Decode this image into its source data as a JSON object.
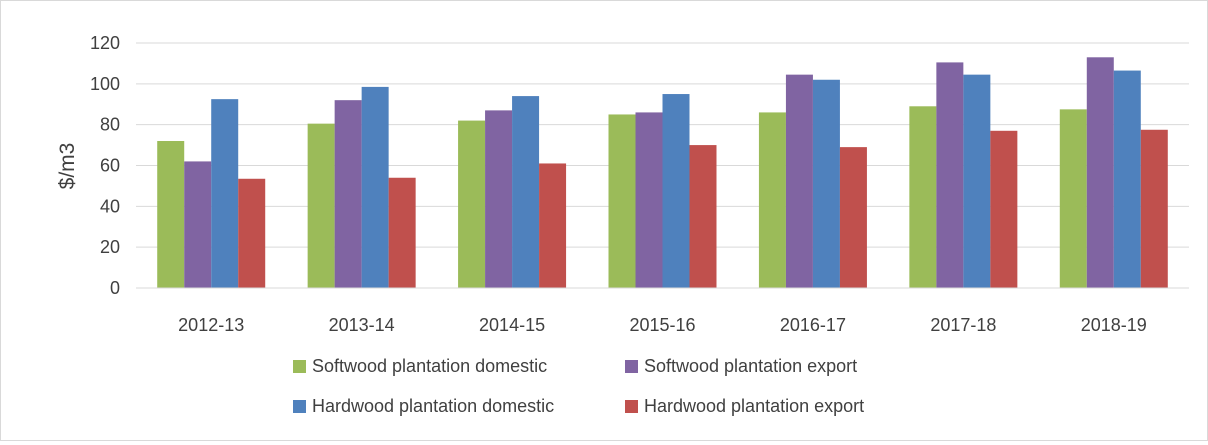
{
  "chart_data": {
    "type": "bar",
    "title": "",
    "xlabel": "",
    "ylabel": "$/m3",
    "ylim": [
      0,
      120
    ],
    "yticks": [
      0,
      20,
      40,
      60,
      80,
      100,
      120
    ],
    "grid": true,
    "legend_position": "bottom",
    "categories": [
      "2012-13",
      "2013-14",
      "2014-15",
      "2015-16",
      "2016-17",
      "2017-18",
      "2018-19"
    ],
    "series": [
      {
        "name": "Softwood plantation domestic",
        "color": "#9bbb59",
        "values": [
          72,
          80.5,
          82,
          85,
          86,
          89,
          87.5
        ]
      },
      {
        "name": "Softwood plantation export",
        "color": "#8064a2",
        "values": [
          62,
          92,
          87,
          86,
          104.5,
          110.5,
          113
        ]
      },
      {
        "name": "Hardwood plantation domestic",
        "color": "#4f81bd",
        "values": [
          92.5,
          98.5,
          94,
          95,
          102,
          104.5,
          106.5
        ]
      },
      {
        "name": "Hardwood plantation export",
        "color": "#c0504d",
        "values": [
          53.5,
          54,
          61,
          70,
          69,
          77,
          77.5
        ]
      }
    ]
  }
}
